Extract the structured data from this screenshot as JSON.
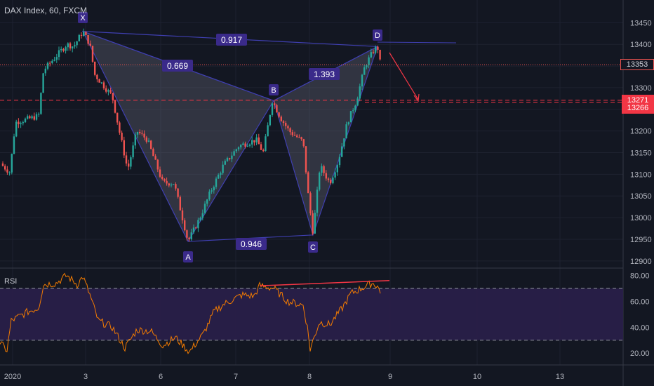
{
  "header": {
    "symbol_line": "DAX Index, 60, FXCM"
  },
  "rsi_panel": {
    "title": "RSI"
  },
  "price_tags": {
    "last": {
      "value": "13353",
      "color": "#131722",
      "text_color": "#d1d4dc"
    },
    "level_1": {
      "value": "13271",
      "color": "#f23645"
    },
    "level_2": {
      "value": "13266",
      "color": "#f23645"
    }
  },
  "colors": {
    "up": "#26a69a",
    "down": "#ef5350",
    "pattern": "#3f3fb0",
    "rsi_line": "#f57c00",
    "rsi_band": "#2a1f4a",
    "bg": "#131722"
  },
  "chart_data": {
    "type": "candlestick",
    "title": "DAX Index, 60, FXCM",
    "y_axis": {
      "range": [
        12890,
        13470
      ],
      "ticks": [
        13450,
        13400,
        13350,
        13300,
        13250,
        13200,
        13150,
        13100,
        13050,
        13000,
        12950,
        12900
      ]
    },
    "x_axis": {
      "tick_labels": [
        "2020",
        "3",
        "6",
        "7",
        "8",
        "9",
        "10",
        "13"
      ]
    },
    "pattern": {
      "points": [
        {
          "label": "X",
          "price": 13430
        },
        {
          "label": "A",
          "price": 12945
        },
        {
          "label": "B",
          "price": 13270
        },
        {
          "label": "C",
          "price": 12960
        },
        {
          "label": "D",
          "price": 13395
        }
      ],
      "ratios": [
        "0.917",
        "0.669",
        "1.393",
        "0.946"
      ]
    },
    "rsi": {
      "ticks": [
        "80.00",
        "60.00",
        "40.00",
        "20.00"
      ],
      "upper_band": 70,
      "lower_band": 30
    }
  }
}
